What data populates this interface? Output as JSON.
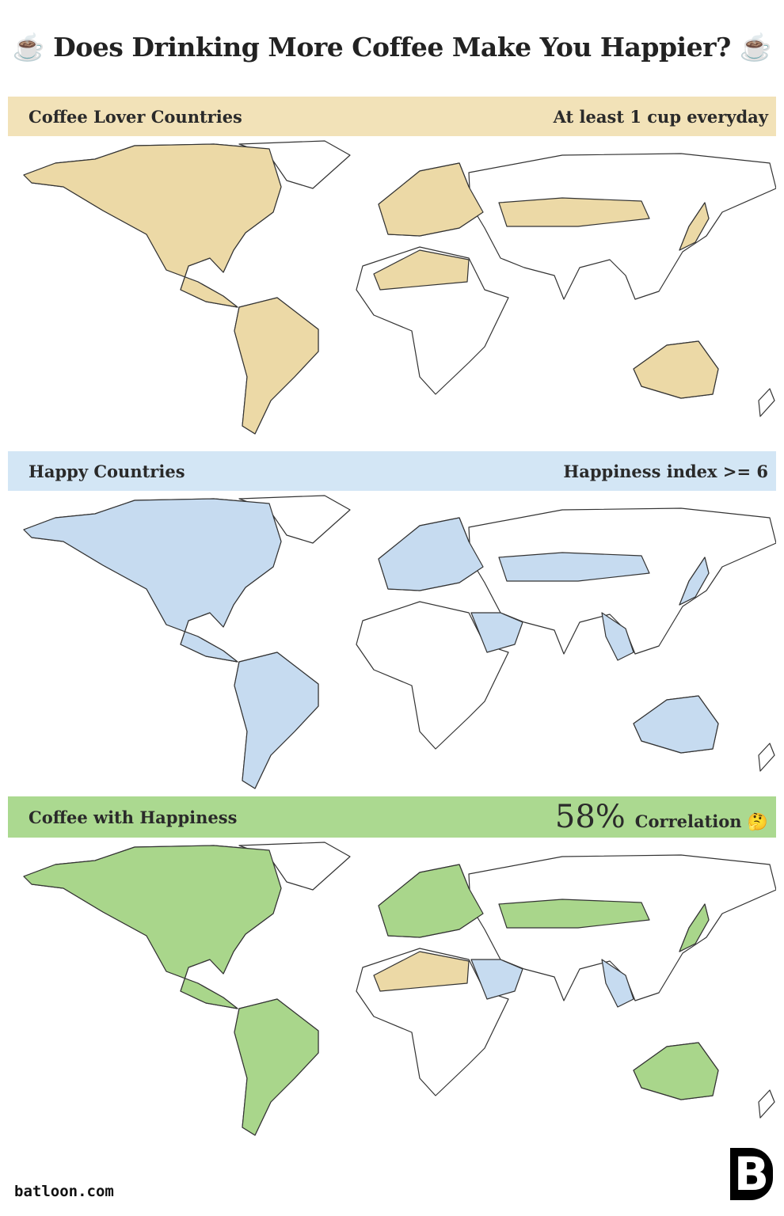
{
  "title": "☕ Does Drinking More Coffee Make You Happier? ☕",
  "panels": [
    {
      "label": "Coffee Lover Countries",
      "note": "At least 1 cup everyday"
    },
    {
      "label": "Happy Countries",
      "note": "Happiness index >= 6"
    },
    {
      "label": "Coffee with Happiness",
      "figure": "58%",
      "note": "Correlation 🤔"
    }
  ],
  "footer": {
    "site": "batloon.com",
    "logo": "B"
  }
}
